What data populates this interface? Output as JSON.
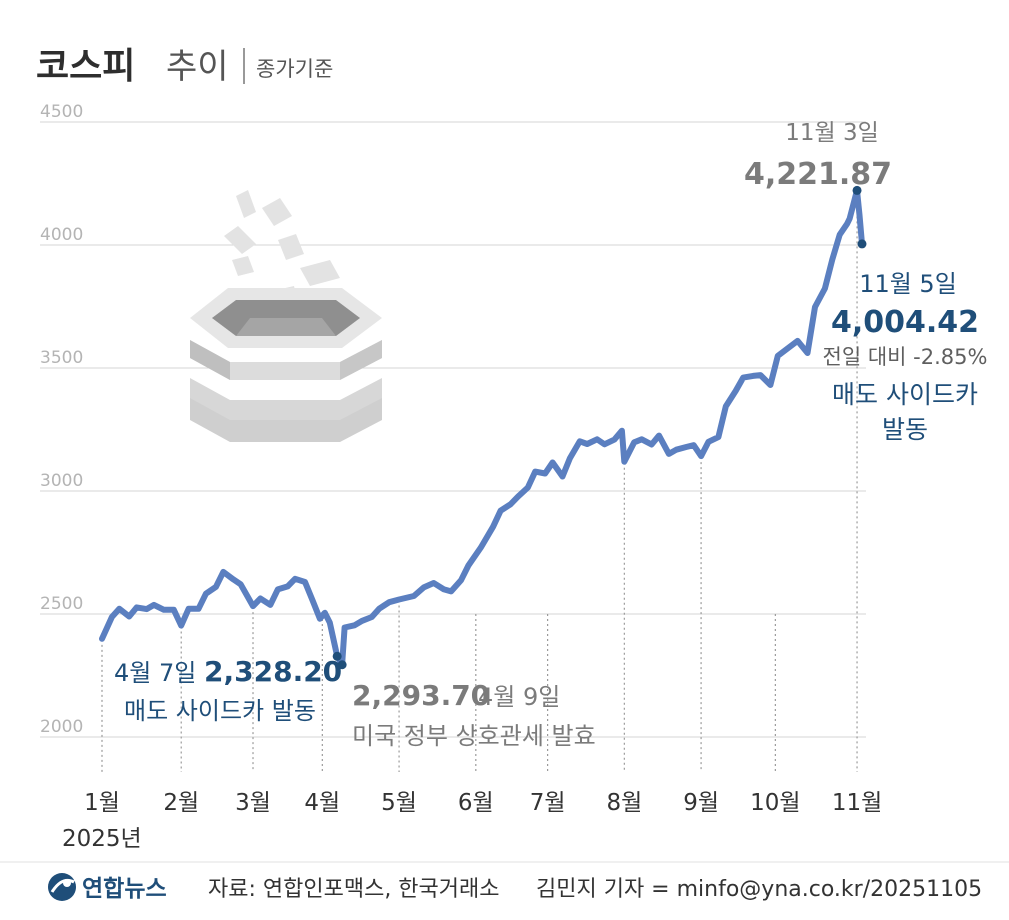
{
  "header": {
    "title": "코스피",
    "subtitle": "추이",
    "note": "종가기준"
  },
  "chart_data": {
    "type": "line",
    "title": "코스피 추이",
    "subtitle": "종가기준",
    "ylim": [
      2000,
      4500
    ],
    "yticks": [
      "4500",
      "4000",
      "3500",
      "3000",
      "2500",
      "2000"
    ],
    "ytick_values": [
      4500,
      4000,
      3500,
      3000,
      2500,
      2000
    ],
    "grid": true,
    "year_label": "2025년",
    "months": [
      {
        "label": "1월",
        "date": "2025-01-02"
      },
      {
        "label": "2월",
        "date": "2025-02-03"
      },
      {
        "label": "3월",
        "date": "2025-03-04"
      },
      {
        "label": "4월",
        "date": "2025-04-01"
      },
      {
        "label": "5월",
        "date": "2025-05-02"
      },
      {
        "label": "6월",
        "date": "2025-06-02"
      },
      {
        "label": "7월",
        "date": "2025-07-01"
      },
      {
        "label": "8월",
        "date": "2025-08-01"
      },
      {
        "label": "9월",
        "date": "2025-09-01"
      },
      {
        "label": "10월",
        "date": "2025-10-01"
      },
      {
        "label": "11월",
        "date": "2025-11-03"
      }
    ],
    "series": [
      {
        "color": "#5b7fc0",
        "points": [
          [
            "2025-01-02",
            2399
          ],
          [
            "2025-01-06",
            2488
          ],
          [
            "2025-01-09",
            2521
          ],
          [
            "2025-01-13",
            2490
          ],
          [
            "2025-01-16",
            2527
          ],
          [
            "2025-01-20",
            2520
          ],
          [
            "2025-01-23",
            2537
          ],
          [
            "2025-01-27",
            2517
          ],
          [
            "2025-01-31",
            2517
          ],
          [
            "2025-02-03",
            2453
          ],
          [
            "2025-02-06",
            2521
          ],
          [
            "2025-02-10",
            2521
          ],
          [
            "2025-02-13",
            2583
          ],
          [
            "2025-02-17",
            2610
          ],
          [
            "2025-02-20",
            2671
          ],
          [
            "2025-02-24",
            2641
          ],
          [
            "2025-02-27",
            2621
          ],
          [
            "2025-03-04",
            2532
          ],
          [
            "2025-03-07",
            2563
          ],
          [
            "2025-03-11",
            2537
          ],
          [
            "2025-03-14",
            2600
          ],
          [
            "2025-03-18",
            2612
          ],
          [
            "2025-03-21",
            2643
          ],
          [
            "2025-03-25",
            2630
          ],
          [
            "2025-03-28",
            2557
          ],
          [
            "2025-03-31",
            2481
          ],
          [
            "2025-04-02",
            2505
          ],
          [
            "2025-04-04",
            2465
          ],
          [
            "2025-04-07",
            2328.2
          ],
          [
            "2025-04-09",
            2293.7
          ],
          [
            "2025-04-10",
            2445
          ],
          [
            "2025-04-14",
            2454
          ],
          [
            "2025-04-17",
            2472
          ],
          [
            "2025-04-21",
            2488
          ],
          [
            "2025-04-24",
            2522
          ],
          [
            "2025-04-28",
            2548
          ],
          [
            "2025-05-02",
            2559
          ],
          [
            "2025-05-08",
            2573
          ],
          [
            "2025-05-12",
            2608
          ],
          [
            "2025-05-16",
            2626
          ],
          [
            "2025-05-20",
            2601
          ],
          [
            "2025-05-23",
            2592
          ],
          [
            "2025-05-27",
            2637
          ],
          [
            "2025-05-30",
            2697
          ],
          [
            "2025-06-04",
            2770
          ],
          [
            "2025-06-09",
            2855
          ],
          [
            "2025-06-12",
            2920
          ],
          [
            "2025-06-16",
            2946
          ],
          [
            "2025-06-19",
            2977
          ],
          [
            "2025-06-23",
            3014
          ],
          [
            "2025-06-26",
            3079
          ],
          [
            "2025-06-30",
            3071
          ],
          [
            "2025-07-03",
            3116
          ],
          [
            "2025-07-07",
            3059
          ],
          [
            "2025-07-10",
            3133
          ],
          [
            "2025-07-14",
            3202
          ],
          [
            "2025-07-17",
            3191
          ],
          [
            "2025-07-21",
            3210
          ],
          [
            "2025-07-24",
            3190
          ],
          [
            "2025-07-28",
            3209
          ],
          [
            "2025-07-31",
            3245
          ],
          [
            "2025-08-01",
            3119
          ],
          [
            "2025-08-05",
            3198
          ],
          [
            "2025-08-08",
            3210
          ],
          [
            "2025-08-12",
            3189
          ],
          [
            "2025-08-15",
            3225
          ],
          [
            "2025-08-19",
            3151
          ],
          [
            "2025-08-22",
            3168
          ],
          [
            "2025-08-26",
            3179
          ],
          [
            "2025-08-29",
            3186
          ],
          [
            "2025-09-01",
            3142
          ],
          [
            "2025-09-04",
            3200
          ],
          [
            "2025-09-08",
            3219
          ],
          [
            "2025-09-11",
            3344
          ],
          [
            "2025-09-15",
            3407
          ],
          [
            "2025-09-18",
            3461
          ],
          [
            "2025-09-22",
            3468
          ],
          [
            "2025-09-25",
            3471
          ],
          [
            "2025-09-29",
            3431
          ],
          [
            "2025-10-02",
            3549
          ],
          [
            "2025-10-10",
            3610
          ],
          [
            "2025-10-14",
            3561
          ],
          [
            "2025-10-17",
            3748
          ],
          [
            "2025-10-21",
            3823
          ],
          [
            "2025-10-24",
            3941
          ],
          [
            "2025-10-27",
            4042
          ],
          [
            "2025-10-30",
            4086
          ],
          [
            "2025-10-31",
            4107
          ],
          [
            "2025-11-03",
            4221.87
          ],
          [
            "2025-11-04",
            4121.74
          ],
          [
            "2025-11-05",
            4004.42
          ]
        ]
      }
    ],
    "annotations": [
      {
        "id": "nov3",
        "date_label": "11월 3일",
        "value_label": "4,221.87",
        "date": "2025-11-03",
        "value": 4221.87
      },
      {
        "id": "nov5",
        "date_label": "11월 5일",
        "value_label": "4,004.42",
        "change": "전일 대비 -2.85%",
        "note1": "매도 사이드카",
        "note2": "발동",
        "date": "2025-11-05",
        "value": 4004.42
      },
      {
        "id": "apr7",
        "date_label": "4월 7일",
        "value_label": "2,328.20",
        "note": "매도 사이드카 발동",
        "date": "2025-04-07",
        "value": 2328.2
      },
      {
        "id": "apr9",
        "value_label": "2,293.70",
        "date_label": "4월 9일",
        "note": "미국 정부 상호관세 발효",
        "date": "2025-04-09",
        "value": 2293.7
      }
    ],
    "colors": {
      "line": "#5b7fc0",
      "highlight": "#1f4e79",
      "grid": "#d6d6d6"
    }
  },
  "footer": {
    "logo": "연합뉴스",
    "source": "자료: 연합인포맥스, 한국거래소",
    "credit": "김민지 기자 = minfo@yna.co.kr/20251105"
  }
}
